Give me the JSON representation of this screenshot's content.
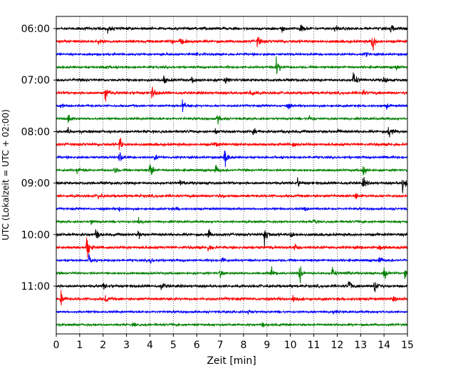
{
  "chart_data": {
    "type": "line",
    "title": "",
    "xlabel": "Zeit  [min]",
    "ylabel": "UTC (Lokalzeit = UTC + 02:00)",
    "xlim": [
      0,
      15
    ],
    "x_ticks": [
      0,
      1,
      2,
      3,
      4,
      5,
      6,
      7,
      8,
      9,
      10,
      11,
      12,
      13,
      14,
      15
    ],
    "y_tick_labels": [
      "06:00",
      "07:00",
      "08:00",
      "09:00",
      "10:00",
      "11:00"
    ],
    "grid": "vertical dotted",
    "trace_colors": [
      "#000000",
      "#ff0000",
      "#0000ff",
      "#008000"
    ],
    "trace_start_times": [
      "06:00",
      "06:15",
      "06:30",
      "06:45",
      "07:00",
      "07:15",
      "07:30",
      "07:45",
      "08:00",
      "08:15",
      "08:30",
      "08:45",
      "09:00",
      "09:15",
      "09:30",
      "09:45",
      "10:00",
      "10:15",
      "10:30",
      "10:45",
      "11:00",
      "11:15",
      "11:30",
      "11:45"
    ],
    "events": [
      [
        [
          2.2,
          0.55
        ],
        [
          10.4,
          0.9
        ],
        [
          14.3,
          0.5
        ],
        [
          9.6,
          0.45
        ],
        [
          11.9,
          0.4
        ]
      ],
      [
        [
          13.5,
          1.5
        ],
        [
          8.6,
          0.8
        ],
        [
          4.9,
          0.5
        ],
        [
          5.3,
          0.5
        ],
        [
          1.8,
          0.4
        ]
      ],
      [
        [
          6.0,
          0.3
        ],
        [
          13.2,
          0.3
        ]
      ],
      [
        [
          9.4,
          1.6
        ],
        [
          2.0,
          0.4
        ],
        [
          14.5,
          0.4
        ]
      ],
      [
        [
          12.7,
          1.4
        ],
        [
          14.0,
          0.6
        ],
        [
          4.6,
          0.55
        ],
        [
          5.8,
          0.4
        ],
        [
          7.2,
          0.4
        ]
      ],
      [
        [
          2.1,
          1.2
        ],
        [
          4.1,
          0.9
        ],
        [
          8.3,
          0.7
        ],
        [
          13.1,
          0.4
        ]
      ],
      [
        [
          0.2,
          0.5
        ],
        [
          5.4,
          0.8
        ],
        [
          9.9,
          0.4
        ],
        [
          14.1,
          0.35
        ]
      ],
      [
        [
          0.5,
          0.9
        ],
        [
          6.9,
          0.7
        ],
        [
          10.8,
          0.5
        ]
      ],
      [
        [
          14.2,
          1.1
        ],
        [
          0.5,
          0.4
        ],
        [
          6.8,
          0.4
        ],
        [
          8.4,
          0.45
        ],
        [
          12.0,
          0.35
        ]
      ],
      [
        [
          2.7,
          1.0
        ],
        [
          6.8,
          0.4
        ],
        [
          10.1,
          0.35
        ]
      ],
      [
        [
          2.7,
          1.2
        ],
        [
          7.2,
          1.3
        ],
        [
          14.0,
          0.4
        ],
        [
          4.2,
          0.4
        ]
      ],
      [
        [
          0.9,
          0.6
        ],
        [
          4.0,
          1.4
        ],
        [
          6.8,
          0.8
        ],
        [
          13.1,
          1.0
        ],
        [
          2.5,
          0.5
        ]
      ],
      [
        [
          14.8,
          1.4
        ],
        [
          13.1,
          0.8
        ],
        [
          5.3,
          0.7
        ],
        [
          10.3,
          0.7
        ]
      ],
      [
        [
          1.8,
          0.4
        ],
        [
          12.8,
          0.4
        ],
        [
          7.0,
          0.35
        ]
      ],
      [
        [
          2.7,
          0.35
        ],
        [
          5.1,
          0.3
        ],
        [
          10.6,
          0.3
        ]
      ],
      [
        [
          3.5,
          0.45
        ],
        [
          11.0,
          0.4
        ],
        [
          1.5,
          0.4
        ]
      ],
      [
        [
          8.9,
          1.5
        ],
        [
          1.7,
          0.8
        ],
        [
          3.5,
          0.6
        ],
        [
          6.5,
          0.6
        ],
        [
          10.0,
          0.5
        ]
      ],
      [
        [
          1.3,
          1.9
        ],
        [
          6.5,
          0.6
        ],
        [
          10.2,
          0.5
        ],
        [
          13.8,
          0.4
        ]
      ],
      [
        [
          1.4,
          0.7
        ],
        [
          7.1,
          0.6
        ],
        [
          4.0,
          0.45
        ],
        [
          13.8,
          0.6
        ]
      ],
      [
        [
          10.4,
          1.3
        ],
        [
          9.2,
          0.6
        ],
        [
          11.8,
          0.9
        ],
        [
          14.0,
          1.0
        ],
        [
          14.9,
          0.8
        ],
        [
          7.0,
          0.5
        ],
        [
          12.4,
          0.5
        ]
      ],
      [
        [
          4.5,
          0.8
        ],
        [
          12.5,
          1.0
        ],
        [
          13.6,
          1.3
        ],
        [
          2.0,
          0.4
        ]
      ],
      [
        [
          0.2,
          1.1
        ],
        [
          10.1,
          0.7
        ],
        [
          2.1,
          0.45
        ],
        [
          14.4,
          0.35
        ]
      ],
      [
        [
          8.2,
          0.45
        ],
        [
          11.8,
          0.35
        ]
      ],
      [
        [
          8.8,
          0.35
        ],
        [
          3.3,
          0.3
        ]
      ]
    ]
  }
}
